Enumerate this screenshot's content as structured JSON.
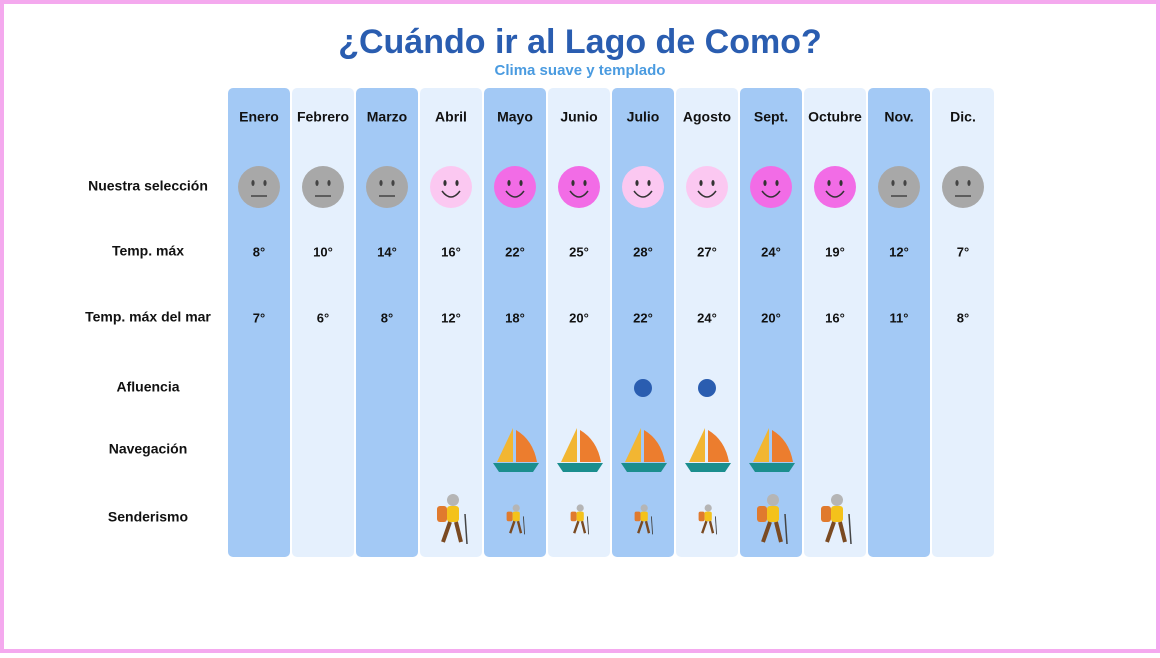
{
  "title": "¿Cuándo ir al Lago de Como?",
  "subtitle": "Clima suave y templado",
  "row_labels": [
    "Nuestra selección",
    "Temp. máx",
    "Temp. máx del mar",
    "Afluencia",
    "Navegación",
    "Senderismo"
  ],
  "months": [
    {
      "name": "Enero",
      "max_temp": "8°",
      "sea_temp": "7°"
    },
    {
      "name": "Febrero",
      "max_temp": "10°",
      "sea_temp": "6°"
    },
    {
      "name": "Marzo",
      "max_temp": "14°",
      "sea_temp": "8°"
    },
    {
      "name": "Abril",
      "max_temp": "16°",
      "sea_temp": "12°"
    },
    {
      "name": "Mayo",
      "max_temp": "22°",
      "sea_temp": "18°"
    },
    {
      "name": "Junio",
      "max_temp": "25°",
      "sea_temp": "20°"
    },
    {
      "name": "Julio",
      "max_temp": "28°",
      "sea_temp": "22°"
    },
    {
      "name": "Agosto",
      "max_temp": "27°",
      "sea_temp": "24°"
    },
    {
      "name": "Sept.",
      "max_temp": "24°",
      "sea_temp": "20°"
    },
    {
      "name": "Octubre",
      "max_temp": "19°",
      "sea_temp": "16°"
    },
    {
      "name": "Nov.",
      "max_temp": "12°",
      "sea_temp": "11°"
    },
    {
      "name": "Dic.",
      "max_temp": "7°",
      "sea_temp": "8°"
    }
  ]
}
